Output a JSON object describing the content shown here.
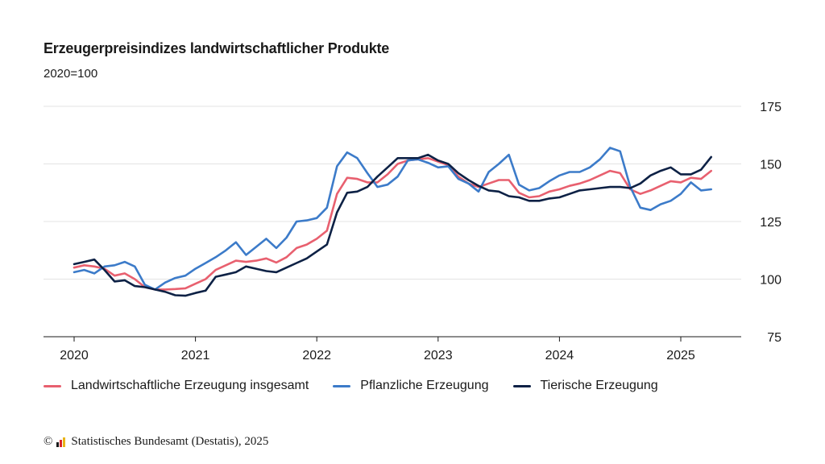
{
  "chart_data": {
    "type": "line",
    "title": "Erzeugerpreisindizes landwirtschaftlicher Produkte",
    "subtitle": "2020=100",
    "x_start": "2020-01",
    "ylim": [
      75,
      175
    ],
    "yticks": [
      75,
      100,
      125,
      150,
      175
    ],
    "xticks": [
      "2020",
      "2021",
      "2022",
      "2023",
      "2024",
      "2025"
    ],
    "grid": true,
    "legend_position": "bottom",
    "series": [
      {
        "name": "Landwirtschaftliche Erzeugung insgesamt",
        "color": "#e8606f",
        "values": [
          105,
          106,
          105.5,
          104.5,
          101.5,
          102.5,
          100,
          96.5,
          95.5,
          95.5,
          95.7,
          96,
          98,
          100,
          104,
          106,
          108,
          107.5,
          108,
          109,
          107.2,
          109.5,
          113.5,
          115,
          117.5,
          121,
          137,
          144,
          143.5,
          142,
          142,
          145.5,
          150,
          151.5,
          152,
          152.5,
          151,
          149.5,
          144.5,
          141.5,
          140,
          141.5,
          143,
          143,
          137.5,
          135.5,
          136,
          138,
          139,
          140.5,
          141.5,
          143,
          145,
          147,
          146,
          139,
          137,
          138.5,
          140.5,
          142.5,
          142,
          144,
          143.5,
          147
        ]
      },
      {
        "name": "Pflanzliche Erzeugung",
        "color": "#3c7bc9",
        "values": [
          103,
          104,
          102.5,
          105.5,
          106,
          107.5,
          105.5,
          97.5,
          95.5,
          98.5,
          100.5,
          101.5,
          104.5,
          107,
          109.5,
          112.5,
          116,
          110.5,
          114,
          117.5,
          113.5,
          118,
          125,
          125.5,
          126.5,
          131,
          149,
          155,
          152.5,
          146,
          140,
          141,
          144.5,
          151.5,
          152,
          150.5,
          148.5,
          149,
          143.5,
          141.5,
          138,
          146.5,
          150,
          154,
          141,
          138.5,
          139.5,
          142.5,
          145,
          146.5,
          146.5,
          148.5,
          152,
          157,
          155.5,
          140,
          131,
          130,
          132.5,
          134,
          137,
          142,
          138.5,
          139
        ]
      },
      {
        "name": "Tierische Erzeugung",
        "color": "#0d2145",
        "values": [
          106.5,
          107.5,
          108.5,
          104,
          99,
          99.5,
          97,
          96.5,
          95.5,
          94.5,
          93,
          92.8,
          94,
          95,
          101,
          102,
          103,
          105.5,
          104.5,
          103.5,
          103,
          105,
          107,
          109,
          112,
          115,
          129,
          137.5,
          138,
          140,
          144.5,
          148.5,
          152.5,
          152.5,
          152.5,
          154,
          151.5,
          150,
          146,
          143,
          140.5,
          138.5,
          138,
          136,
          135.5,
          134,
          134,
          135,
          135.5,
          137,
          138.5,
          139,
          139.5,
          140,
          140,
          139.5,
          141.5,
          145,
          147,
          148.5,
          145.5,
          145.5,
          147.5,
          153
        ]
      }
    ]
  },
  "source": {
    "copyright_symbol": "©",
    "text": "Statistisches Bundesamt (Destatis), 2025",
    "logo_colors": [
      "#1a1a1a",
      "#d9252a",
      "#e8b418"
    ]
  }
}
